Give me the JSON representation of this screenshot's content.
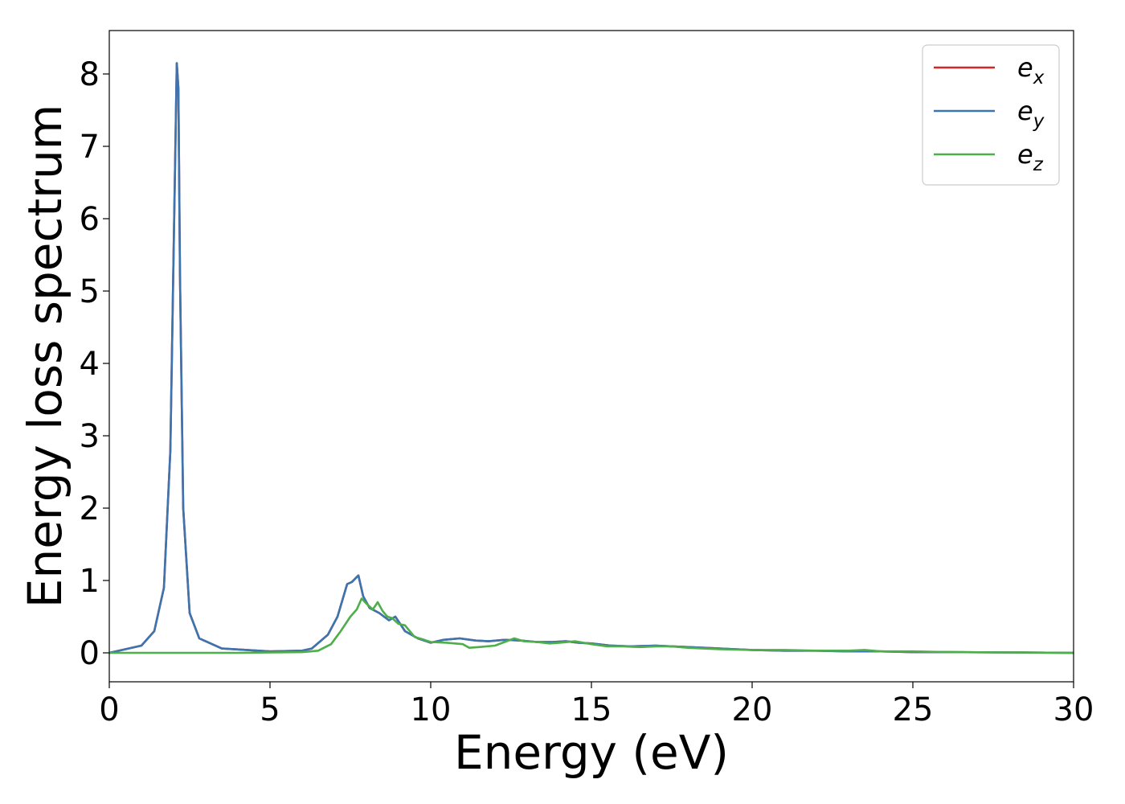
{
  "chart_data": {
    "type": "line",
    "xlabel": "Energy (eV)",
    "ylabel": "Energy loss spectrum",
    "xlim": [
      0,
      30
    ],
    "ylim": [
      -0.4,
      8.6
    ],
    "x_ticks": [
      0,
      5,
      10,
      15,
      20,
      25,
      30
    ],
    "y_ticks": [
      0,
      1,
      2,
      3,
      4,
      5,
      6,
      7,
      8
    ],
    "grid": false,
    "legend_position": "top-right",
    "series": [
      {
        "name": "e_x",
        "legend_base": "e",
        "legend_sub": "x",
        "color": "#d62728",
        "x": [
          0,
          0.5,
          1.0,
          1.4,
          1.7,
          1.9,
          2.0,
          2.1,
          2.15,
          2.2,
          2.3,
          2.5,
          2.8,
          3.5,
          5.0,
          6.0,
          6.3,
          6.8,
          7.1,
          7.4,
          7.55,
          7.75,
          7.9,
          8.1,
          8.4,
          8.7,
          8.9,
          9.2,
          9.6,
          10.0,
          10.4,
          10.9,
          11.4,
          11.8,
          12.3,
          12.8,
          13.3,
          13.8,
          14.2,
          14.6,
          15.0,
          15.6,
          16.2,
          17.0,
          17.5,
          18.5,
          19.5,
          20.0,
          21.0,
          22.0,
          23.0,
          24.0,
          25.0,
          26.0,
          28.0,
          30.0
        ],
        "y": [
          0.0,
          0.05,
          0.1,
          0.3,
          0.9,
          2.8,
          5.5,
          8.15,
          7.8,
          5.2,
          2.0,
          0.55,
          0.2,
          0.06,
          0.02,
          0.03,
          0.06,
          0.25,
          0.5,
          0.95,
          0.98,
          1.07,
          0.78,
          0.62,
          0.55,
          0.45,
          0.5,
          0.3,
          0.2,
          0.14,
          0.18,
          0.2,
          0.17,
          0.16,
          0.18,
          0.17,
          0.15,
          0.15,
          0.16,
          0.14,
          0.13,
          0.1,
          0.09,
          0.1,
          0.09,
          0.07,
          0.05,
          0.04,
          0.03,
          0.03,
          0.02,
          0.02,
          0.01,
          0.01,
          0.005,
          0.0
        ]
      },
      {
        "name": "e_y",
        "legend_base": "e",
        "legend_sub": "y",
        "color": "#3b75af",
        "x": [
          0,
          0.5,
          1.0,
          1.4,
          1.7,
          1.9,
          2.0,
          2.1,
          2.15,
          2.2,
          2.3,
          2.5,
          2.8,
          3.5,
          5.0,
          6.0,
          6.3,
          6.8,
          7.1,
          7.4,
          7.55,
          7.75,
          7.9,
          8.1,
          8.4,
          8.7,
          8.9,
          9.2,
          9.6,
          10.0,
          10.4,
          10.9,
          11.4,
          11.8,
          12.3,
          12.8,
          13.3,
          13.8,
          14.2,
          14.6,
          15.0,
          15.6,
          16.2,
          17.0,
          17.5,
          18.5,
          19.5,
          20.0,
          21.0,
          22.0,
          23.0,
          24.0,
          25.0,
          26.0,
          28.0,
          30.0
        ],
        "y": [
          0.0,
          0.05,
          0.1,
          0.3,
          0.9,
          2.8,
          5.5,
          8.15,
          7.8,
          5.2,
          2.0,
          0.55,
          0.2,
          0.06,
          0.02,
          0.03,
          0.06,
          0.25,
          0.5,
          0.95,
          0.98,
          1.07,
          0.78,
          0.62,
          0.55,
          0.45,
          0.5,
          0.3,
          0.2,
          0.14,
          0.18,
          0.2,
          0.17,
          0.16,
          0.18,
          0.17,
          0.15,
          0.15,
          0.16,
          0.14,
          0.13,
          0.1,
          0.09,
          0.1,
          0.09,
          0.07,
          0.05,
          0.04,
          0.03,
          0.03,
          0.02,
          0.02,
          0.01,
          0.01,
          0.005,
          0.0
        ]
      },
      {
        "name": "e_z",
        "legend_base": "e",
        "legend_sub": "z",
        "color": "#4daf4a",
        "x": [
          0,
          2.0,
          4.0,
          6.0,
          6.5,
          6.9,
          7.2,
          7.5,
          7.7,
          7.85,
          8.0,
          8.2,
          8.35,
          8.5,
          8.65,
          8.8,
          9.0,
          9.2,
          9.5,
          9.8,
          10.0,
          10.5,
          11.0,
          11.2,
          11.5,
          12.0,
          12.3,
          12.6,
          12.9,
          13.3,
          13.7,
          14.0,
          14.5,
          15.0,
          15.5,
          16.0,
          16.5,
          17.0,
          17.5,
          18.0,
          19.0,
          20.0,
          21.0,
          22.0,
          23.0,
          23.5,
          24.0,
          25.0,
          26.0,
          28.0,
          30.0
        ],
        "y": [
          0.0,
          0.0,
          0.0,
          0.01,
          0.03,
          0.12,
          0.3,
          0.5,
          0.6,
          0.75,
          0.68,
          0.6,
          0.7,
          0.58,
          0.5,
          0.48,
          0.4,
          0.38,
          0.22,
          0.18,
          0.15,
          0.14,
          0.12,
          0.07,
          0.08,
          0.1,
          0.15,
          0.2,
          0.16,
          0.15,
          0.13,
          0.14,
          0.16,
          0.12,
          0.09,
          0.09,
          0.08,
          0.09,
          0.09,
          0.07,
          0.05,
          0.04,
          0.04,
          0.03,
          0.03,
          0.04,
          0.02,
          0.02,
          0.01,
          0.005,
          0.0
        ]
      }
    ]
  }
}
